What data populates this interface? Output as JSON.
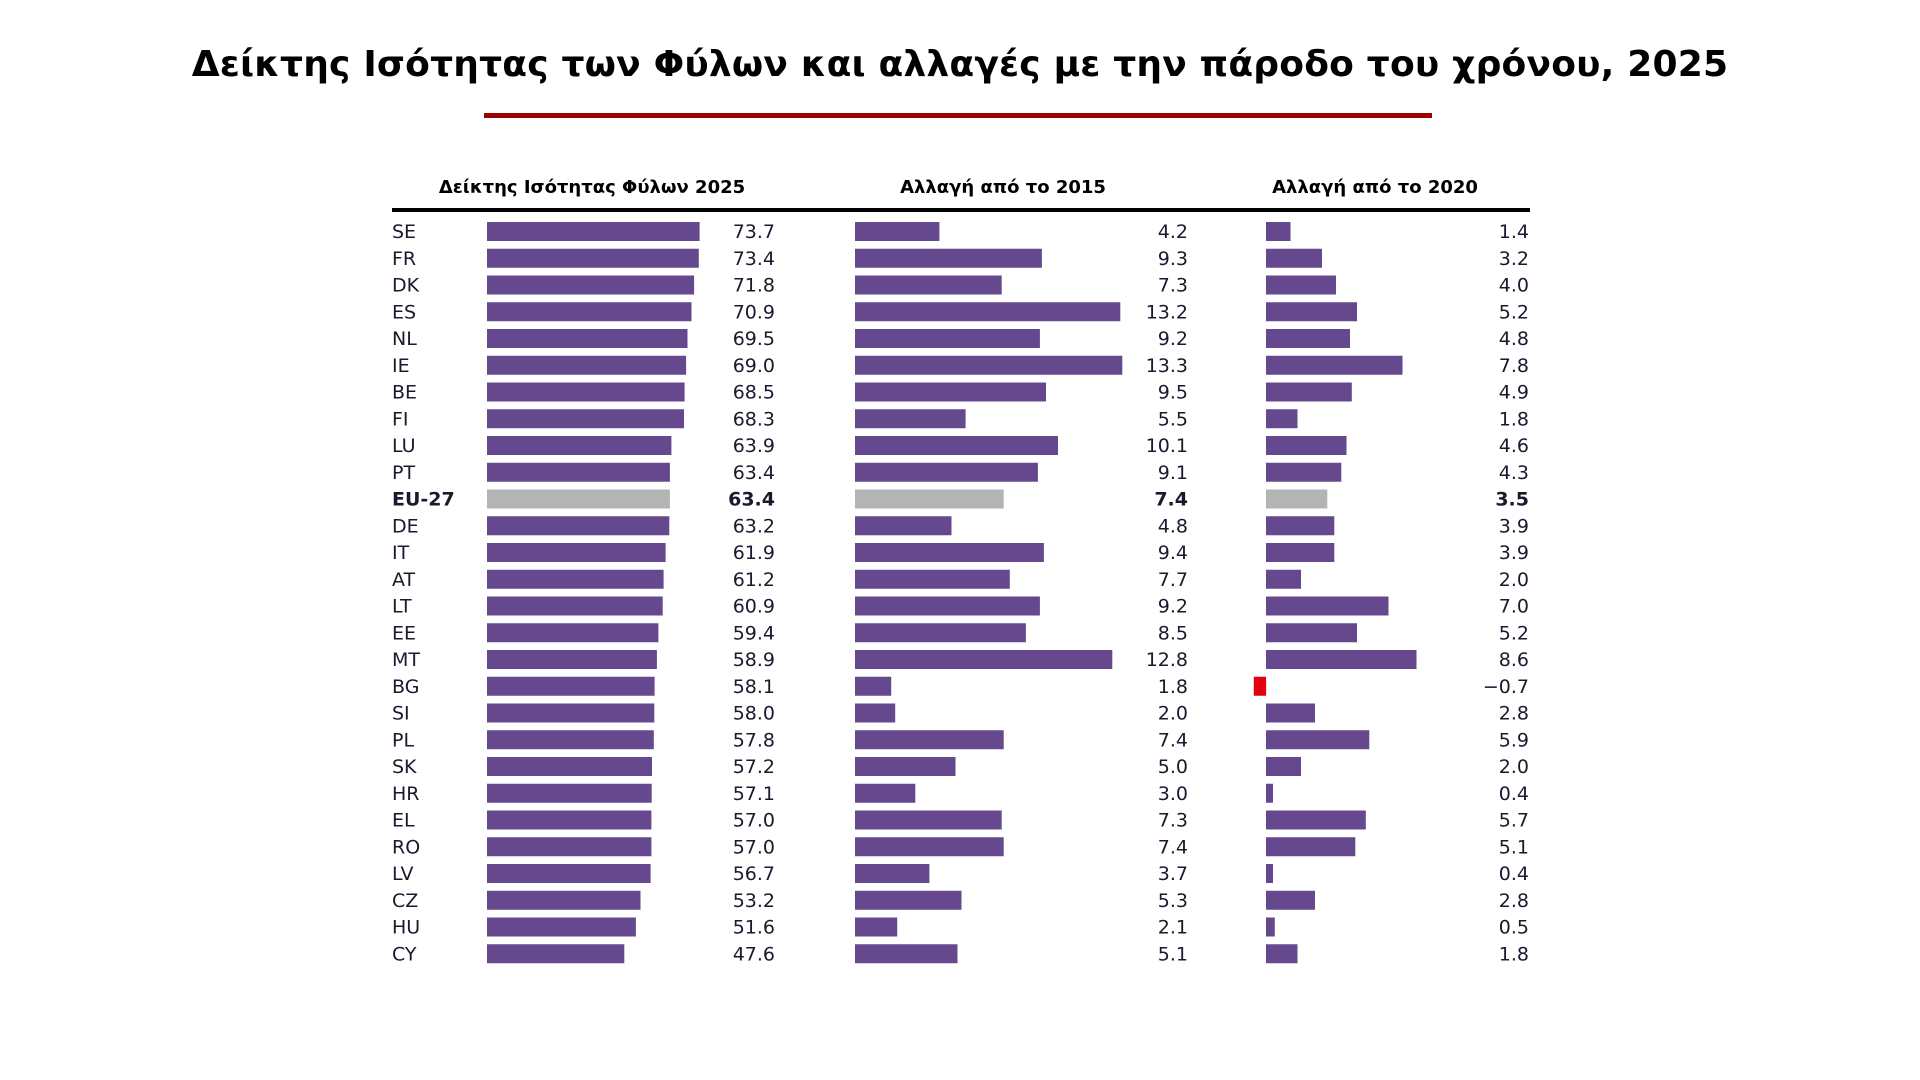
{
  "title": "Δείκτης Ισότητας των Φύλων και αλλαγές με την πάροδο του χρόνου, 2025",
  "colors": {
    "bar": "#65488e",
    "highlight_bar": "#b4b4b4",
    "negative_bar": "#e3000f",
    "title_rule": "#9e0000",
    "text": "#1a1a2e"
  },
  "chart_data": {
    "type": "bar",
    "orientation": "horizontal",
    "title": "Δείκτης Ισότητας των Φύλων και αλλαγές με την πάροδο του χρόνου, 2025",
    "highlight_category": "EU-27",
    "categories": [
      "SE",
      "FR",
      "DK",
      "ES",
      "NL",
      "IE",
      "BE",
      "FI",
      "LU",
      "PT",
      "EU-27",
      "DE",
      "IT",
      "AT",
      "LT",
      "EE",
      "MT",
      "BG",
      "SI",
      "PL",
      "SK",
      "HR",
      "EL",
      "RO",
      "LV",
      "CZ",
      "HU",
      "CY"
    ],
    "series": [
      {
        "name": "Δείκτης Ισότητας Φύλων 2025",
        "values": [
          73.7,
          73.4,
          71.8,
          70.9,
          69.5,
          69.0,
          68.5,
          68.3,
          63.9,
          63.4,
          63.4,
          63.2,
          61.9,
          61.2,
          60.9,
          59.4,
          58.9,
          58.1,
          58.0,
          57.8,
          57.2,
          57.1,
          57.0,
          57.0,
          56.7,
          53.2,
          51.6,
          47.6
        ],
        "labels": [
          "73.7",
          "73.4",
          "71.8",
          "70.9",
          "69.5",
          "69.0",
          "68.5",
          "68.3",
          "63.9",
          "63.4",
          "63.4",
          "63.2",
          "61.9",
          "61.2",
          "60.9",
          "59.4",
          "58.9",
          "58.1",
          "58.0",
          "57.8",
          "57.2",
          "57.1",
          "57.0",
          "57.0",
          "56.7",
          "53.2",
          "51.6",
          "47.6"
        ]
      },
      {
        "name": "Αλλαγή από το 2015",
        "values": [
          4.2,
          9.3,
          7.3,
          13.2,
          9.2,
          13.3,
          9.5,
          5.5,
          10.1,
          9.1,
          7.4,
          4.8,
          9.4,
          7.7,
          9.2,
          8.5,
          12.8,
          1.8,
          2.0,
          7.4,
          5.0,
          3.0,
          7.3,
          7.4,
          3.7,
          5.3,
          2.1,
          5.1
        ],
        "labels": [
          "4.2",
          "9.3",
          "7.3",
          "13.2",
          "9.2",
          "13.3",
          "9.5",
          "5.5",
          "10.1",
          "9.1",
          "7.4",
          "4.8",
          "9.4",
          "7.7",
          "9.2",
          "8.5",
          "12.8",
          "1.8",
          "2.0",
          "7.4",
          "5.0",
          "3.0",
          "7.3",
          "7.4",
          "3.7",
          "5.3",
          "2.1",
          "5.1"
        ]
      },
      {
        "name": "Αλλαγή από το 2020",
        "values": [
          1.4,
          3.2,
          4.0,
          5.2,
          4.8,
          7.8,
          4.9,
          1.8,
          4.6,
          4.3,
          3.5,
          3.9,
          3.9,
          2.0,
          7.0,
          5.2,
          8.6,
          -0.7,
          2.8,
          5.9,
          2.0,
          0.4,
          5.7,
          5.1,
          0.4,
          2.8,
          0.5,
          1.8
        ],
        "labels": [
          "1.4",
          "3.2",
          "4.0",
          "5.2",
          "4.8",
          "7.8",
          "4.9",
          "1.8",
          "4.6",
          "4.3",
          "3.5",
          "3.9",
          "3.9",
          "2.0",
          "7.0",
          "5.2",
          "8.6",
          "−0.7",
          "2.8",
          "5.9",
          "2.0",
          "0.4",
          "5.7",
          "5.1",
          "0.4",
          "2.8",
          "0.5",
          "1.8"
        ]
      }
    ],
    "xlabel": "",
    "ylabel": "",
    "grid": false,
    "legend": "none"
  }
}
